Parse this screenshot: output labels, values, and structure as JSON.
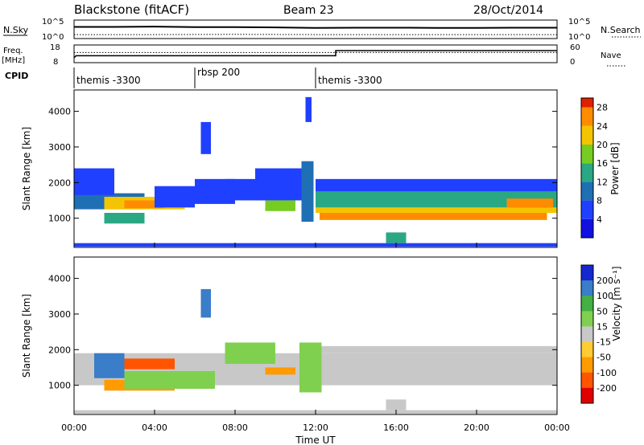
{
  "header": {
    "station": "Blackstone (fitACF)",
    "beam": "Beam 23",
    "date": "28/Oct/2014"
  },
  "chart_data": [
    {
      "type": "line",
      "panel": "noise",
      "labels": {
        "left": "N.Sky",
        "right": "N.Search"
      },
      "yticks_left": [
        "10^5",
        "10^0"
      ],
      "yticks_right": [
        "10^5",
        "10^0"
      ],
      "series": [
        {
          "name": "N.Sky",
          "style": "solid",
          "x_hours": [
            0,
            2,
            4,
            6,
            8,
            10,
            12,
            14,
            16,
            18,
            20,
            22,
            24
          ],
          "log10_values": [
            3.6,
            3.6,
            3.7,
            3.5,
            3.5,
            3.4,
            3.2,
            3.3,
            3.3,
            3.2,
            3.2,
            3.3,
            3.3
          ]
        },
        {
          "name": "N.Search",
          "style": "dotted",
          "x_hours": [
            0,
            4,
            8,
            12,
            16,
            20,
            24
          ],
          "log10_values": [
            0.6,
            0.6,
            0.7,
            0.6,
            0.6,
            0.6,
            0.6
          ]
        }
      ]
    },
    {
      "type": "line",
      "panel": "frequency",
      "labels": {
        "left_top": "Freq.",
        "left_bottom": "[MHz]",
        "right": "Nave"
      },
      "yticks_left": [
        18,
        8
      ],
      "yticks_right": [
        60,
        0
      ],
      "series": [
        {
          "name": "Freq.",
          "style": "solid",
          "x_hours": [
            0,
            0.1,
            13.0,
            13.0,
            24
          ],
          "values": [
            10,
            11.5,
            11.5,
            15.5,
            15.5
          ]
        },
        {
          "name": "Nave",
          "style": "dotted",
          "x_hours": [
            0,
            24
          ],
          "values": [
            14,
            14
          ]
        }
      ]
    },
    {
      "type": "table",
      "panel": "cpid",
      "label": "CPID",
      "segments": [
        {
          "name": "themis -3300",
          "start_hour": 0.0,
          "end_hour": 6.0
        },
        {
          "name": "rbsp 200",
          "start_hour": 6.0,
          "end_hour": 12.0
        },
        {
          "name": "themis -3300",
          "start_hour": 12.0,
          "end_hour": 24.0
        }
      ]
    },
    {
      "type": "heatmap",
      "panel": "power",
      "ylabel": "Slant Range [km]",
      "yticks": [
        1000,
        2000,
        3000,
        4000
      ],
      "ylim": [
        180,
        4600
      ],
      "colorbar": {
        "label": "Power [dB]",
        "ticks": [
          4,
          8,
          12,
          16,
          20,
          24,
          28
        ],
        "range": [
          0,
          30
        ]
      },
      "bands": [
        {
          "t0": 0.0,
          "t1": 3.5,
          "r0": 1250,
          "r1": 1700,
          "value": 11
        },
        {
          "t0": 1.5,
          "t1": 5.5,
          "r0": 1250,
          "r1": 1600,
          "value": 22
        },
        {
          "t0": 2.5,
          "t1": 4.5,
          "r0": 1280,
          "r1": 1500,
          "value": 27
        },
        {
          "t0": 0.0,
          "t1": 2.0,
          "r0": 1650,
          "r1": 2400,
          "value": 5
        },
        {
          "t0": 1.5,
          "t1": 3.5,
          "r0": 850,
          "r1": 1150,
          "value": 12
        },
        {
          "t0": 4.0,
          "t1": 6.0,
          "r0": 1300,
          "r1": 1900,
          "value": 7
        },
        {
          "t0": 6.0,
          "t1": 8.0,
          "r0": 1400,
          "r1": 2100,
          "value": 7
        },
        {
          "t0": 6.3,
          "t1": 6.8,
          "r0": 2800,
          "r1": 3700,
          "value": 6
        },
        {
          "t0": 7.5,
          "t1": 9.5,
          "r0": 1500,
          "r1": 2100,
          "value": 6
        },
        {
          "t0": 9.0,
          "t1": 11.5,
          "r0": 1500,
          "r1": 2400,
          "value": 4
        },
        {
          "t0": 9.5,
          "t1": 11.0,
          "r0": 1200,
          "r1": 1500,
          "value": 17
        },
        {
          "t0": 11.3,
          "t1": 11.9,
          "r0": 900,
          "r1": 2600,
          "value": 9
        },
        {
          "t0": 11.5,
          "t1": 11.8,
          "r0": 3700,
          "r1": 4400,
          "value": 6
        },
        {
          "t0": 12.0,
          "t1": 24.0,
          "r0": 1150,
          "r1": 1300,
          "value": 20
        },
        {
          "t0": 12.2,
          "t1": 23.5,
          "r0": 950,
          "r1": 1150,
          "value": 24
        },
        {
          "t0": 12.0,
          "t1": 24.0,
          "r0": 1300,
          "r1": 1750,
          "value": 12
        },
        {
          "t0": 12.0,
          "t1": 24.0,
          "r0": 1750,
          "r1": 2100,
          "value": 5
        },
        {
          "t0": 21.5,
          "t1": 23.8,
          "r0": 1300,
          "r1": 1550,
          "value": 27
        },
        {
          "t0": 15.5,
          "t1": 16.5,
          "r0": 300,
          "r1": 600,
          "value": 12
        },
        {
          "t0": 0.0,
          "t1": 24.0,
          "r0": 200,
          "r1": 300,
          "value": 6
        }
      ]
    },
    {
      "type": "heatmap",
      "panel": "velocity",
      "ylabel": "Slant Range [km]",
      "yticks": [
        1000,
        2000,
        3000,
        4000
      ],
      "ylim": [
        180,
        4600
      ],
      "xlabel": "Time UT",
      "xticks": [
        "00:00",
        "04:00",
        "08:00",
        "12:00",
        "16:00",
        "20:00",
        "00:00"
      ],
      "xlim_hours": [
        0,
        24
      ],
      "colorbar": {
        "label": "Velocity [m s⁻¹]",
        "ticks": [
          200,
          100,
          50,
          15,
          -15,
          -50,
          -100,
          -200
        ],
        "range": [
          -250,
          250
        ]
      },
      "bands": [
        {
          "t0": 0.0,
          "t1": 24.0,
          "r0": 1000,
          "r1": 1900,
          "value": 0
        },
        {
          "t0": 12.0,
          "t1": 24.0,
          "r0": 1900,
          "r1": 2100,
          "value": 0
        },
        {
          "t0": 2.0,
          "t1": 5.0,
          "r0": 1450,
          "r1": 1750,
          "value": -150
        },
        {
          "t0": 1.0,
          "t1": 2.5,
          "r0": 1200,
          "r1": 1900,
          "value": 180
        },
        {
          "t0": 1.5,
          "t1": 5.0,
          "r0": 850,
          "r1": 1150,
          "value": -60
        },
        {
          "t0": 2.5,
          "t1": 7.0,
          "r0": 900,
          "r1": 1400,
          "value": 40
        },
        {
          "t0": 6.3,
          "t1": 6.8,
          "r0": 2900,
          "r1": 3700,
          "value": 170
        },
        {
          "t0": 7.5,
          "t1": 10.0,
          "r0": 1600,
          "r1": 2200,
          "value": 40
        },
        {
          "t0": 9.5,
          "t1": 11.0,
          "r0": 1300,
          "r1": 1500,
          "value": -60
        },
        {
          "t0": 11.2,
          "t1": 12.3,
          "r0": 800,
          "r1": 2200,
          "value": 40
        },
        {
          "t0": 15.5,
          "t1": 16.5,
          "r0": 300,
          "r1": 600,
          "value": 0
        },
        {
          "t0": 0.0,
          "t1": 24.0,
          "r0": 200,
          "r1": 300,
          "value": 0
        }
      ]
    }
  ]
}
